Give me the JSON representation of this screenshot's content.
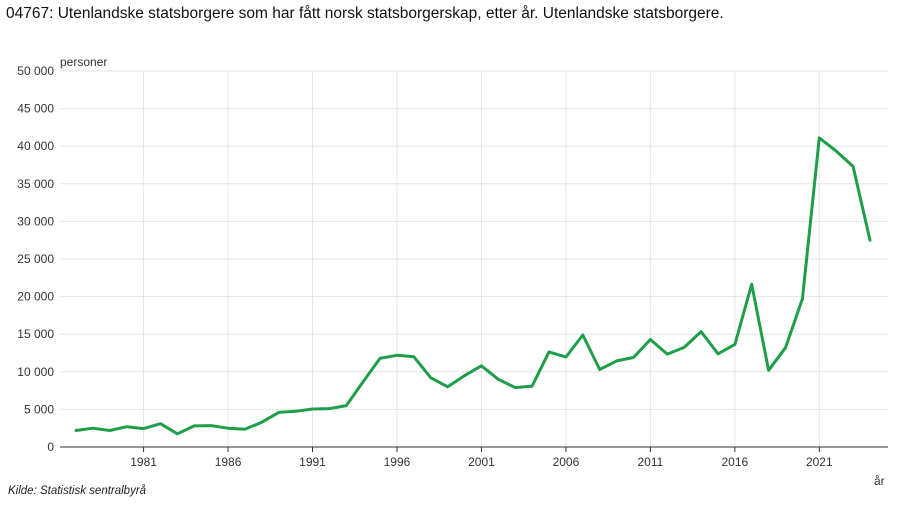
{
  "title": "04767: Utenlandske statsborgere som har fått norsk statsborgerskap, etter år. Utenlandske statsborgere.",
  "source": "Kilde:  Statistisk sentralbyrå",
  "chart_data": {
    "type": "line",
    "title": "04767: Utenlandske statsborgere som har fått norsk statsborgerskap, etter år. Utenlandske statsborgere.",
    "ylabel": "personer",
    "xlabel": "år",
    "ylim": [
      0,
      50000
    ],
    "xlim": [
      1977,
      2024
    ],
    "grid": true,
    "legend": "none",
    "y_ticks": [
      0,
      5000,
      10000,
      15000,
      20000,
      25000,
      30000,
      35000,
      40000,
      45000,
      50000
    ],
    "y_tick_labels": [
      "0",
      "5 000",
      "10 000",
      "15 000",
      "20 000",
      "25 000",
      "30 000",
      "35 000",
      "40 000",
      "45 000",
      "50 000"
    ],
    "x_ticks": [
      1981,
      1986,
      1991,
      1996,
      2001,
      2006,
      2011,
      2016,
      2021
    ],
    "x_tick_labels": [
      "1981",
      "1986",
      "1991",
      "1996",
      "2001",
      "2006",
      "2011",
      "2016",
      "2021"
    ],
    "color": "#1f9e4a",
    "x": [
      1977,
      1978,
      1979,
      1980,
      1981,
      1982,
      1983,
      1984,
      1985,
      1986,
      1987,
      1988,
      1989,
      1990,
      1991,
      1992,
      1993,
      1994,
      1995,
      1996,
      1997,
      1998,
      1999,
      2000,
      2001,
      2002,
      2003,
      2004,
      2005,
      2006,
      2007,
      2008,
      2009,
      2010,
      2011,
      2012,
      2013,
      2014,
      2015,
      2016,
      2017,
      2018,
      2019,
      2020,
      2021,
      2022,
      2023,
      2024
    ],
    "series": [
      {
        "values": [
          2200,
          2500,
          2200,
          2700,
          2450,
          3100,
          1750,
          2800,
          2850,
          2500,
          2350,
          3300,
          4600,
          4750,
          5050,
          5100,
          5500,
          8700,
          11800,
          12200,
          12000,
          9200,
          8000,
          9500,
          10800,
          9000,
          7900,
          8100,
          12650,
          11950,
          14900,
          10300,
          11450,
          11900,
          14300,
          12350,
          13250,
          15350,
          12400,
          13650,
          21650,
          10200,
          13200,
          19700,
          41100,
          39350,
          37300,
          27500
        ]
      }
    ]
  }
}
